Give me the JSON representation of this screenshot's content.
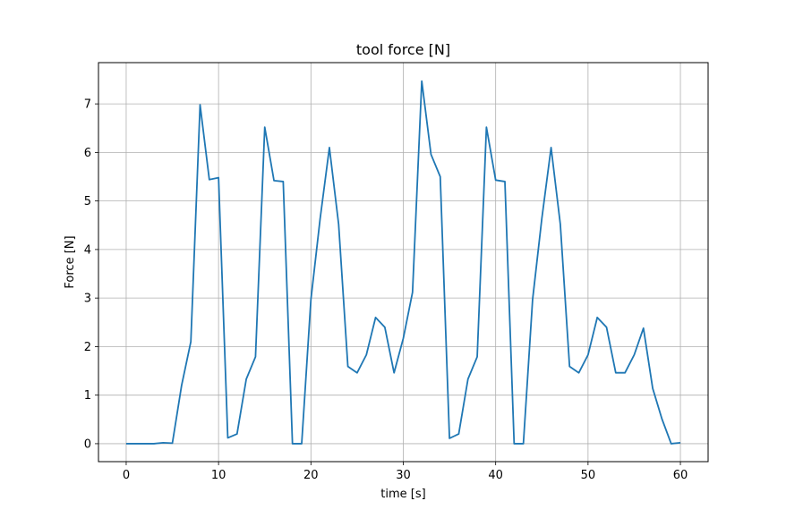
{
  "chart_data": {
    "type": "line",
    "title": "tool force [N]",
    "xlabel": "time [s]",
    "ylabel": "Force [N]",
    "xlim": [
      -3,
      63
    ],
    "ylim": [
      -0.37,
      7.85
    ],
    "xticks": [
      0,
      10,
      20,
      30,
      40,
      50,
      60
    ],
    "yticks": [
      0,
      1,
      2,
      3,
      4,
      5,
      6,
      7
    ],
    "grid": true,
    "series": [
      {
        "name": "tool force",
        "color": "#1f77b4",
        "x": [
          0,
          1,
          2,
          3,
          4,
          5,
          6,
          7,
          8,
          9,
          10,
          11,
          12,
          13,
          14,
          15,
          16,
          17,
          18,
          19,
          20,
          21,
          22,
          23,
          24,
          25,
          26,
          27,
          28,
          29,
          30,
          31,
          32,
          33,
          34,
          35,
          36,
          37,
          38,
          39,
          40,
          41,
          42,
          43,
          44,
          45,
          46,
          47,
          48,
          49,
          50,
          51,
          52,
          53,
          54,
          55,
          56,
          57,
          58,
          59,
          60
        ],
        "y": [
          0,
          0,
          0,
          0,
          0.02,
          0.01,
          1.2,
          2.1,
          6.98,
          5.44,
          5.48,
          0.12,
          0.2,
          1.33,
          1.79,
          6.52,
          5.42,
          5.4,
          0,
          0,
          2.97,
          4.64,
          6.1,
          4.52,
          1.59,
          1.46,
          1.83,
          2.6,
          2.4,
          1.46,
          2.17,
          3.12,
          7.47,
          5.96,
          5.5,
          0.11,
          0.2,
          1.33,
          1.79,
          6.52,
          5.43,
          5.4,
          0,
          0,
          2.97,
          4.64,
          6.1,
          4.52,
          1.59,
          1.46,
          1.83,
          2.6,
          2.4,
          1.46,
          1.46,
          1.83,
          2.38,
          1.14,
          0.51,
          0,
          0.02
        ]
      }
    ]
  }
}
